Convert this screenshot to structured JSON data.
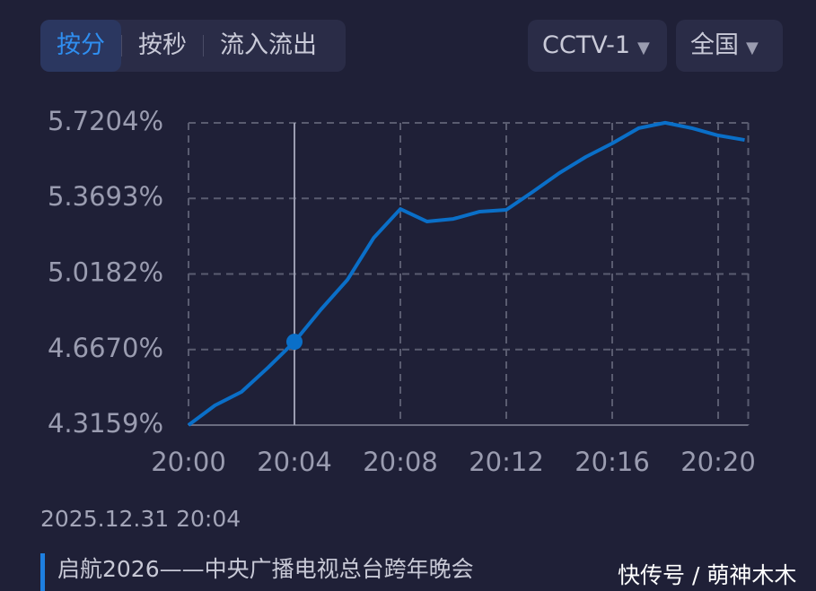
{
  "tabs": [
    "按分",
    "按秒",
    "流入流出"
  ],
  "dropdowns": [
    "CCTV-1",
    "全国"
  ],
  "chart_data": {
    "type": "line",
    "categories": [
      "20:00",
      "20:01",
      "20:02",
      "20:03",
      "20:04",
      "20:05",
      "20:06",
      "20:07",
      "20:08",
      "20:09",
      "20:10",
      "20:11",
      "20:12",
      "20:13",
      "20:14",
      "20:15",
      "20:16",
      "20:17",
      "20:18",
      "20:19",
      "20:20",
      "20:21"
    ],
    "values": [
      4.3159,
      4.4076,
      4.47,
      4.583,
      4.703,
      4.853,
      4.991,
      5.187,
      5.32,
      5.262,
      5.274,
      5.308,
      5.316,
      5.4,
      5.487,
      5.562,
      5.625,
      5.696,
      5.721,
      5.696,
      5.662,
      5.641
    ],
    "color": "#0a6fc8",
    "ylim": [
      4.3159,
      5.7204
    ],
    "yticks": [
      {
        "value": 4.3159,
        "label": "4.3159%"
      },
      {
        "value": 4.667,
        "label": "4.6670%"
      },
      {
        "value": 5.0182,
        "label": "5.0182%"
      },
      {
        "value": 5.3693,
        "label": "5.3693%"
      },
      {
        "value": 5.7204,
        "label": "5.7204%"
      }
    ],
    "xticks": [
      "20:00",
      "20:04",
      "20:08",
      "20:12",
      "20:16",
      "20:20"
    ],
    "grid": true
  },
  "selected": "2025.12.31 20:04",
  "program": "启航2026——中央广播电视总台跨年晚会",
  "watermark": "快传号 / 萌神木木"
}
